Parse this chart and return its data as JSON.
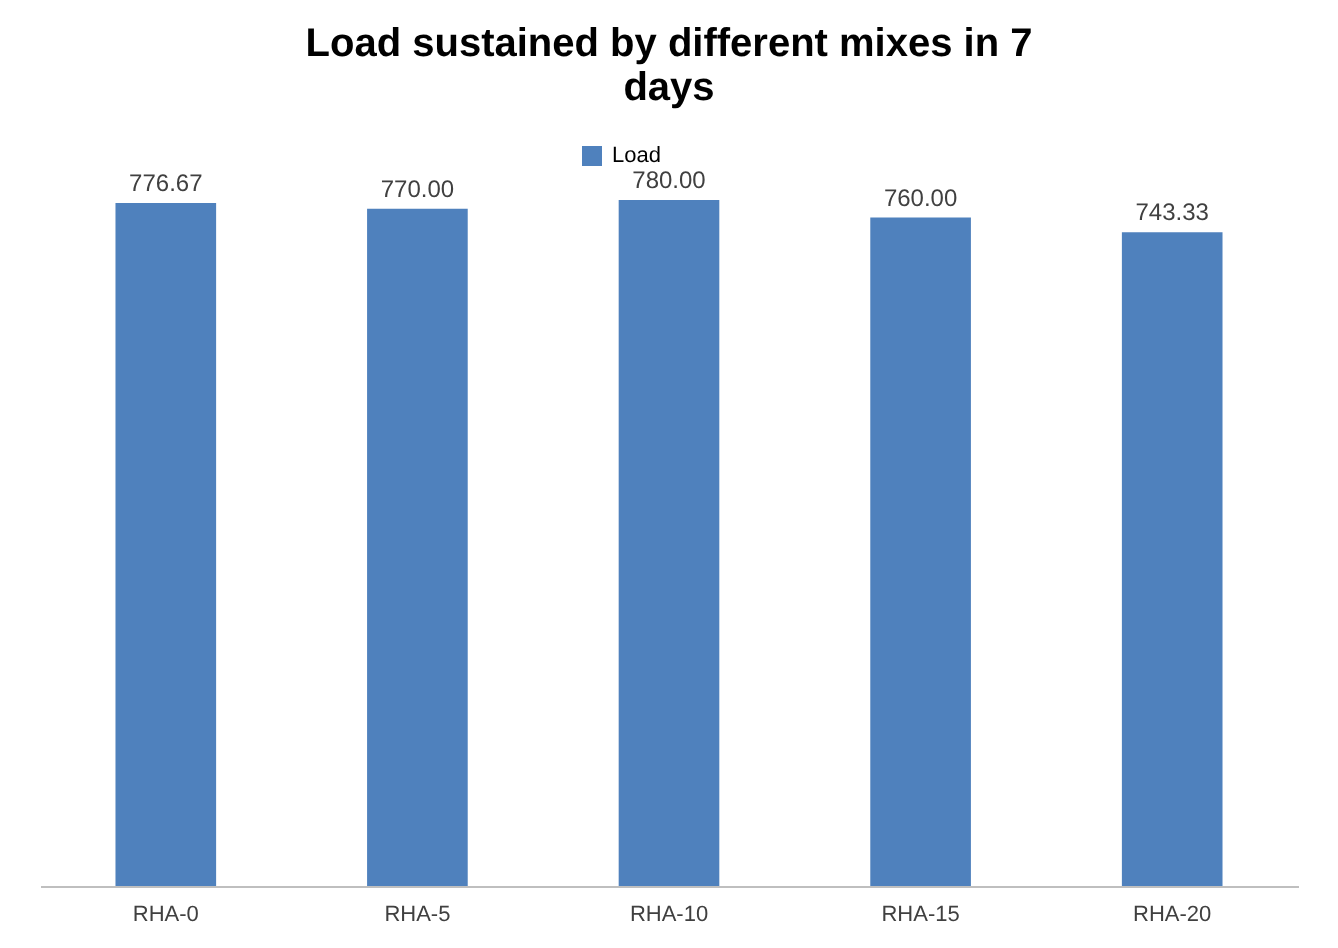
{
  "chart_data": {
    "type": "bar",
    "title": "Load sustained by different mixes in 7 days",
    "categories": [
      "RHA-0",
      "RHA-5",
      "RHA-10",
      "RHA-15",
      "RHA-20"
    ],
    "series": [
      {
        "name": "Load",
        "color": "#4f81bd",
        "values": [
          776.67,
          770.0,
          780.0,
          760.0,
          743.33
        ],
        "value_labels": [
          "776.67",
          "770.00",
          "780.00",
          "760.00",
          "743.33"
        ]
      }
    ],
    "tick_labels": "x",
    "grid": false,
    "legend": "top"
  }
}
